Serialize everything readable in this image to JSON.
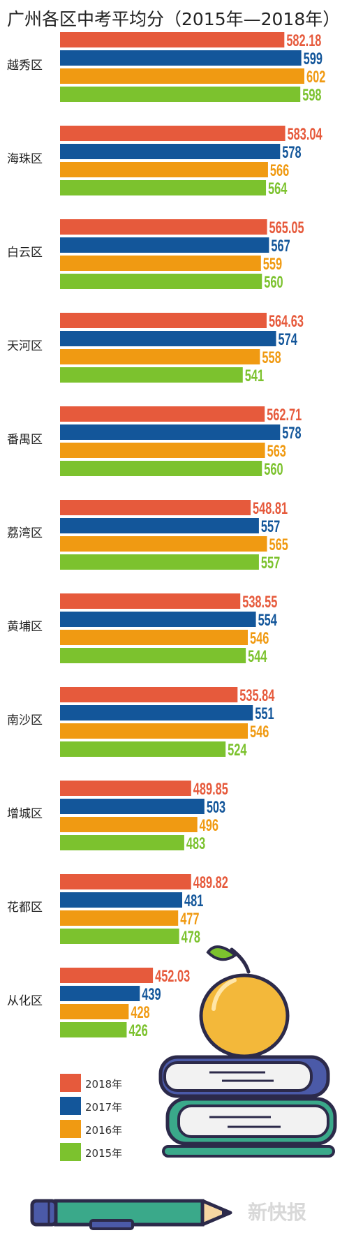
{
  "title": "广州各区中考平均分（2015年—2018年）",
  "watermark": "新快报",
  "colors": {
    "2018": "#e65a3c",
    "2017": "#13569a",
    "2016": "#f09a12",
    "2015": "#7cc22e"
  },
  "chart_data": {
    "type": "bar",
    "orientation": "horizontal",
    "title": "广州各区中考平均分（2015年—2018年）",
    "categories": [
      "越秀区",
      "海珠区",
      "白云区",
      "天河区",
      "番禺区",
      "荔湾区",
      "黄埔区",
      "南沙区",
      "增城区",
      "花都区",
      "从化区"
    ],
    "series": [
      {
        "name": "2018年",
        "color_key": "2018",
        "values": [
          582.18,
          583.04,
          565.05,
          564.63,
          562.71,
          548.81,
          538.55,
          535.84,
          489.85,
          489.82,
          452.03
        ],
        "labels": [
          "582.18",
          "583.04",
          "565.05",
          "564.63",
          "562.71",
          "548.81",
          "538.55",
          "535.84",
          "489.85",
          "489.82",
          "452.03"
        ]
      },
      {
        "name": "2017年",
        "color_key": "2017",
        "values": [
          599,
          578,
          567,
          574,
          578,
          557,
          554,
          551,
          503,
          481,
          439
        ],
        "labels": [
          "599",
          "578",
          "567",
          "574",
          "578",
          "557",
          "554",
          "551",
          "503",
          "481",
          "439"
        ]
      },
      {
        "name": "2016年",
        "color_key": "2016",
        "values": [
          602,
          566,
          559,
          558,
          563,
          565,
          546,
          546,
          496,
          477,
          428
        ],
        "labels": [
          "602",
          "566",
          "559",
          "558",
          "563",
          "565",
          "546",
          "546",
          "496",
          "477",
          "428"
        ]
      },
      {
        "name": "2015年",
        "color_key": "2015",
        "values": [
          598,
          564,
          560,
          541,
          560,
          557,
          544,
          524,
          483,
          478,
          426
        ],
        "labels": [
          "598",
          "564",
          "560",
          "541",
          "560",
          "557",
          "544",
          "524",
          "483",
          "478",
          "426"
        ]
      }
    ],
    "xlim": [
      360,
      602
    ],
    "legend": "bottom-left",
    "grid": false
  },
  "legend": {
    "items": [
      {
        "label": "2018年",
        "color_key": "2018"
      },
      {
        "label": "2017年",
        "color_key": "2017"
      },
      {
        "label": "2016年",
        "color_key": "2016"
      },
      {
        "label": "2015年",
        "color_key": "2015"
      }
    ]
  },
  "illustration": {
    "icons": [
      "apple-icon",
      "book-stack-icon",
      "pencil-icon"
    ]
  }
}
